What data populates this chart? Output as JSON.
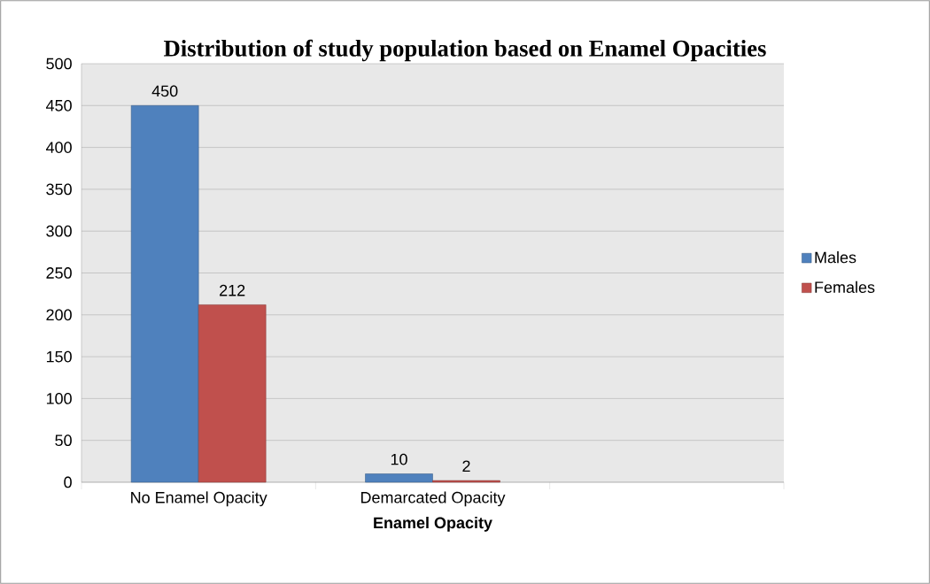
{
  "chart_data": {
    "type": "bar",
    "title": "Distribution of study population based on Enamel Opacities",
    "xlabel": "Enamel Opacity",
    "categories": [
      "No Enamel Opacity",
      "Demarcated Opacity",
      null
    ],
    "series": [
      {
        "name": "Males",
        "color": "#4f81bd",
        "values": [
          450,
          10,
          null
        ]
      },
      {
        "name": "Females",
        "color": "#c0504d",
        "values": [
          212,
          2,
          null
        ]
      }
    ],
    "ylim": [
      0,
      500
    ],
    "yticks": [
      0,
      50,
      100,
      150,
      200,
      250,
      300,
      350,
      400,
      450,
      500
    ],
    "grid": "y",
    "legend": "right",
    "data_labels": true
  }
}
